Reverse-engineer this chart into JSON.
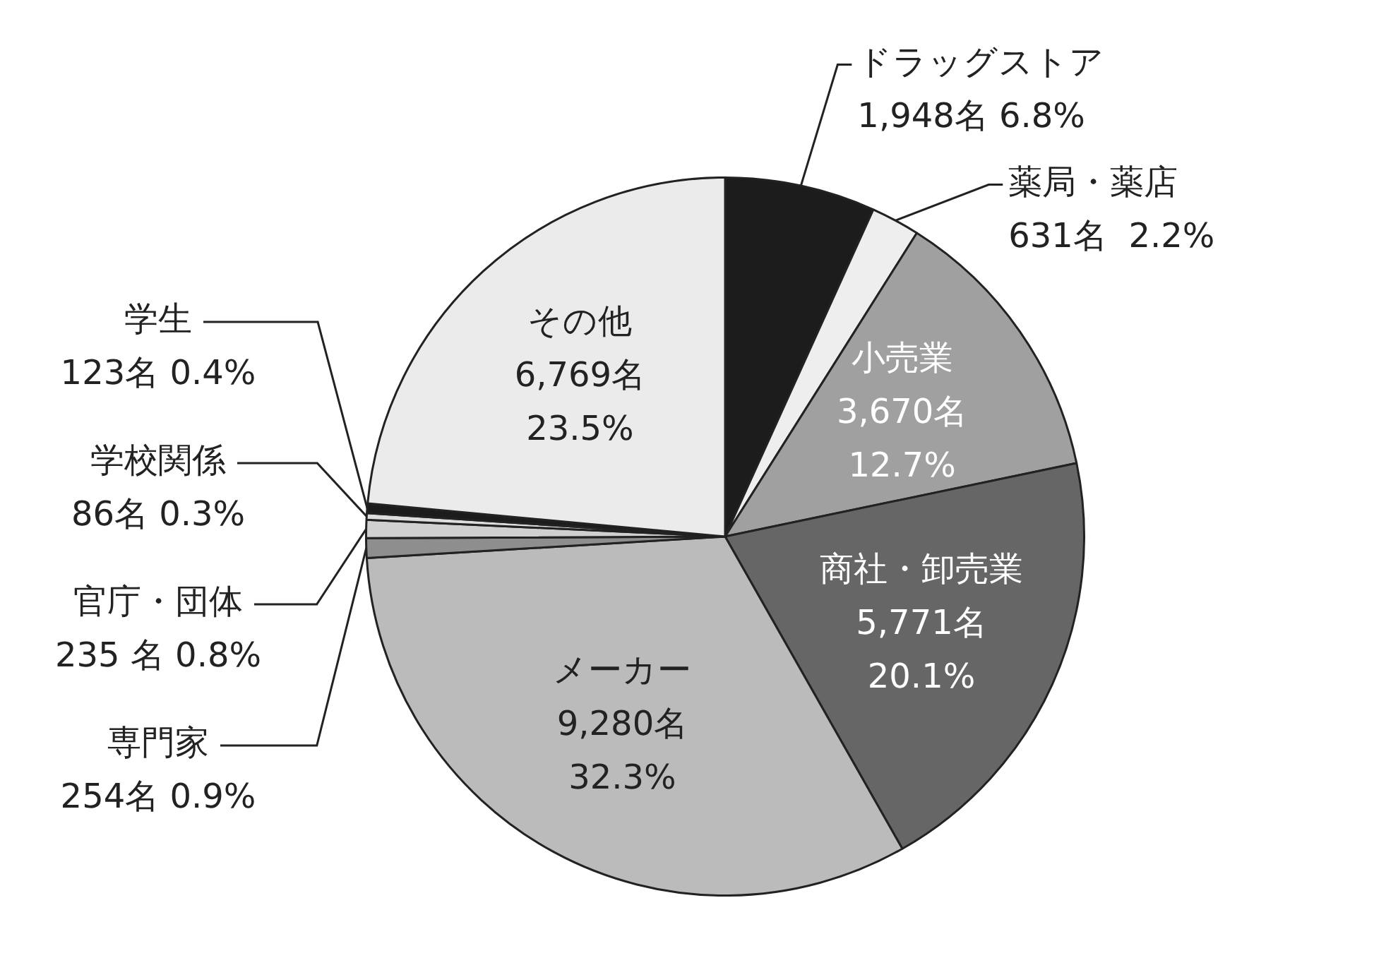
{
  "chart_data": {
    "type": "pie",
    "categories": [
      "ドラッグストア",
      "薬局・薬店",
      "小売業",
      "商社・卸売業",
      "メーカー",
      "専門家",
      "官庁・団体",
      "学校関係",
      "学生",
      "その他"
    ],
    "values": [
      1948,
      631,
      3670,
      5771,
      9280,
      254,
      235,
      86,
      123,
      6769
    ],
    "value_labels": [
      "1,948名 6.8%",
      "631名  2.2%",
      "3,670名 12.7%",
      "5,771名 20.1%",
      "9,280名 32.3%",
      "254名 0.9%",
      "235 名 0.8%",
      "86名 0.3%",
      "123名 0.4%",
      "6,769名 23.5%"
    ],
    "colors": [
      "#1c1c1c",
      "#eeeeee",
      "#a0a0a0",
      "#666666",
      "#bbbbbb",
      "#8e8e8e",
      "#d0d0d0",
      "#dddddd",
      "#1c1c1c",
      "#ebebeb"
    ]
  }
}
